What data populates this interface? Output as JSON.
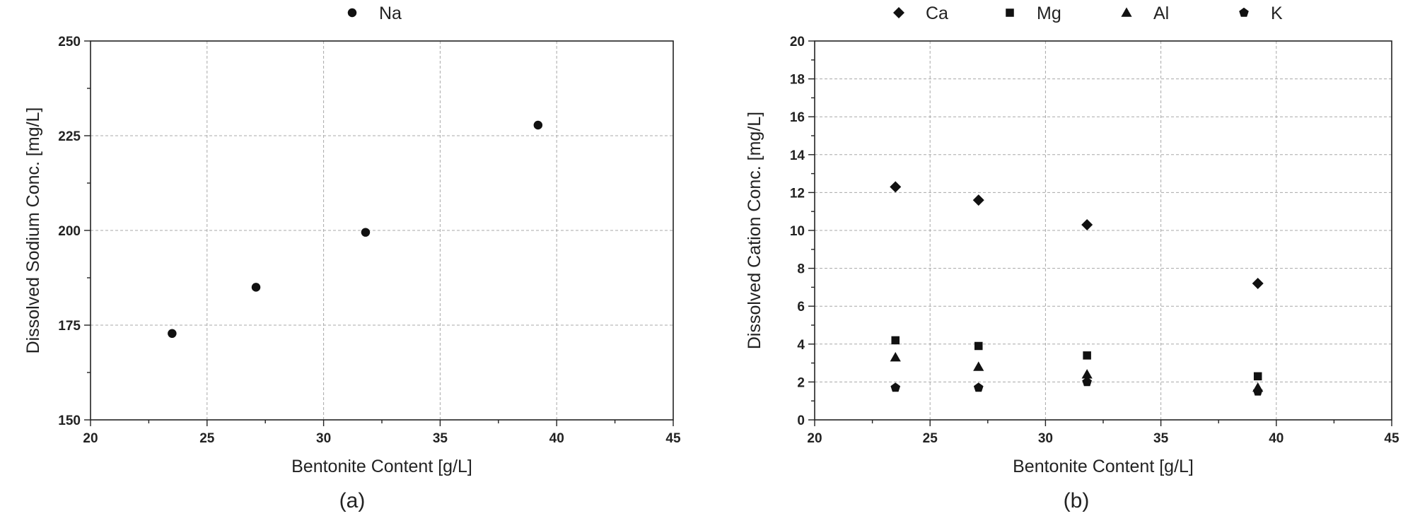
{
  "chart_data": [
    {
      "type": "scatter",
      "panel_label": "(a)",
      "xlabel": "Bentonite Content [g/L]",
      "ylabel": "Dissolved Sodium Conc. [mg/L]",
      "xlim": [
        20,
        45
      ],
      "ylim": [
        150,
        250
      ],
      "xticks": [
        20,
        25,
        30,
        35,
        40,
        45
      ],
      "yticks": [
        150,
        175,
        200,
        225,
        250
      ],
      "grid": true,
      "legend_position": "top-center",
      "series": [
        {
          "name": "Na",
          "marker": "circle",
          "x": [
            23.5,
            27.1,
            31.8,
            39.2
          ],
          "y": [
            172.8,
            185.0,
            199.5,
            227.8
          ]
        }
      ]
    },
    {
      "type": "scatter",
      "panel_label": "(b)",
      "xlabel": "Bentonite Content [g/L]",
      "ylabel": "Dissolved Cation Conc. [mg/L]",
      "xlim": [
        20,
        45
      ],
      "ylim": [
        0,
        20
      ],
      "xticks": [
        20,
        25,
        30,
        35,
        40,
        45
      ],
      "yticks": [
        0,
        2,
        4,
        6,
        8,
        10,
        12,
        14,
        16,
        18,
        20
      ],
      "grid": true,
      "legend_position": "top",
      "series": [
        {
          "name": "Ca",
          "marker": "diamond",
          "x": [
            23.5,
            27.1,
            31.8,
            39.2
          ],
          "y": [
            12.3,
            11.6,
            10.3,
            7.2
          ]
        },
        {
          "name": "Mg",
          "marker": "square",
          "x": [
            23.5,
            27.1,
            31.8,
            39.2
          ],
          "y": [
            4.2,
            3.9,
            3.4,
            2.3
          ]
        },
        {
          "name": "Al",
          "marker": "triangle",
          "x": [
            23.5,
            27.1,
            31.8,
            39.2
          ],
          "y": [
            3.3,
            2.8,
            2.4,
            1.7
          ]
        },
        {
          "name": "K",
          "marker": "pentagon",
          "x": [
            23.5,
            27.1,
            31.8,
            39.2
          ],
          "y": [
            1.7,
            1.7,
            2.0,
            1.5
          ]
        }
      ]
    }
  ]
}
